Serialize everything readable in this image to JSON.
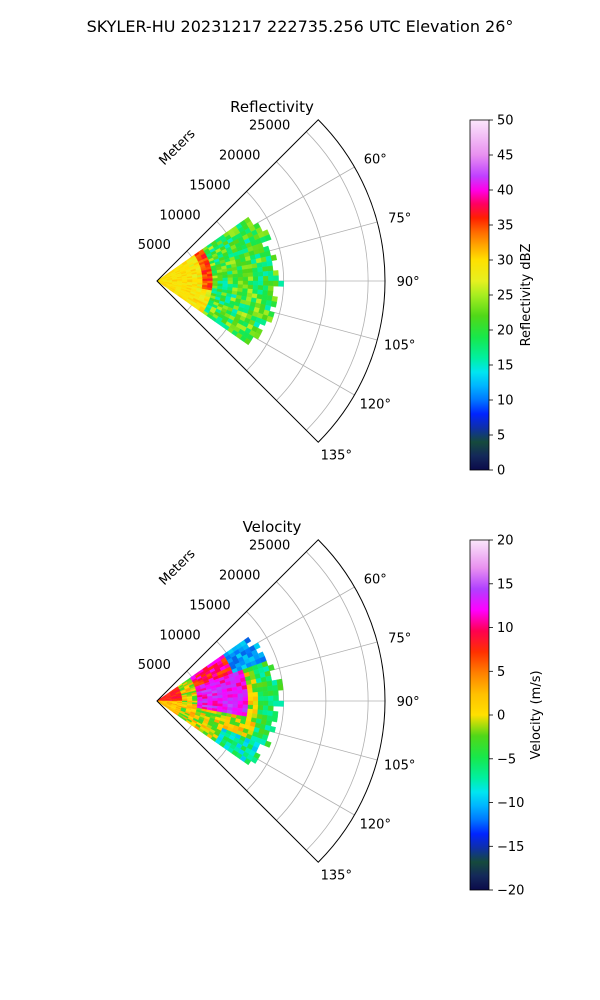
{
  "figure": {
    "title": "SKYLER-HU  20231217  222735.256 UTC Elevation 26°"
  },
  "chart_data": [
    {
      "type": "heatmap",
      "subtype": "polar-sector (PPI)",
      "title": "Reflectivity",
      "range_label": "Meters",
      "range_ticks": [
        5000,
        10000,
        15000,
        20000,
        25000
      ],
      "range_max": 27000,
      "azimuth_range_deg": [
        45,
        135
      ],
      "azimuth_ticks": [
        "60°",
        "75°",
        "90°",
        "105°",
        "120°",
        "135°"
      ],
      "grid": true,
      "colorbar": {
        "label": "Reflectivity dBZ",
        "min": 0,
        "max": 50,
        "ticks": [
          "0",
          "5",
          "10",
          "15",
          "20",
          "25",
          "30",
          "35",
          "40",
          "45",
          "50"
        ],
        "colormap": "radar rainbow (navy-blue-cyan-green-yellow-orange-red-magenta-pink)"
      },
      "data_coverage": {
        "max_range_m": 14000,
        "azimuth_extent_deg": [
          55,
          125
        ]
      },
      "features": [
        {
          "description": "yellow-orange echo (~25–30 dBZ) near radar, ranges 0–4000 m"
        },
        {
          "description": "red ring (~33–37 dBZ) near 5000–6000 m on left side"
        },
        {
          "description": "mostly green/yellow echoes (~15–25 dBZ) from 6000 to 14000 m"
        }
      ]
    },
    {
      "type": "heatmap",
      "subtype": "polar-sector (PPI)",
      "title": "Velocity",
      "range_label": "Meters",
      "range_ticks": [
        5000,
        10000,
        15000,
        20000,
        25000
      ],
      "range_max": 27000,
      "azimuth_range_deg": [
        45,
        135
      ],
      "azimuth_ticks": [
        "60°",
        "75°",
        "90°",
        "105°",
        "120°",
        "135°"
      ],
      "grid": true,
      "colorbar": {
        "label": "Velocity (m/s)",
        "min": -20,
        "max": 20,
        "ticks": [
          "−20",
          "−15",
          "−10",
          "−5",
          "0",
          "5",
          "10",
          "15",
          "20"
        ],
        "colormap": "diverging rainbow (navy-blue-cyan-green-yellow-orange-red-magenta-pink)"
      },
      "data_coverage": {
        "max_range_m": 14000,
        "azimuth_extent_deg": [
          55,
          125
        ]
      },
      "features": [
        {
          "description": "cyan/blue outbound band (~−10 to −15 m/s) along outer edge 11000–14000 m on north side"
        },
        {
          "description": "magenta/red inbound core (~10–15 m/s) at 5000–10000 m around azimuth 75–95°"
        },
        {
          "description": "yellow/green near-zero region (~0 to −5 m/s) close to radar and along southern part"
        }
      ]
    }
  ]
}
